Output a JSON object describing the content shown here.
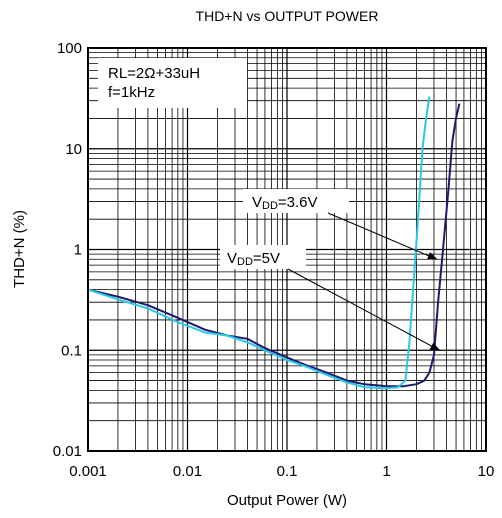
{
  "chart_data": {
    "type": "line",
    "title": "THD+N vs OUTPUT POWER",
    "xlabel": "Output Power (W)",
    "ylabel": "THD+N (%)",
    "x_scale": "log",
    "y_scale": "log",
    "xlim": [
      0.001,
      10
    ],
    "ylim": [
      0.01,
      100
    ],
    "x_ticks": [
      0.001,
      0.01,
      0.1,
      1,
      10
    ],
    "x_tick_labels": [
      "0.001",
      "0.01",
      "0.1",
      "1",
      "10"
    ],
    "y_ticks": [
      0.01,
      0.1,
      1,
      10,
      100
    ],
    "y_tick_labels": [
      "0.01",
      "0.1",
      "1",
      "10",
      "100"
    ],
    "grid": true,
    "conditions": {
      "line1": "RL=2Ω+33uH",
      "line2": "f=1kHz"
    },
    "series": [
      {
        "name": "VDD=5V",
        "color": "#1a1a6e",
        "points": [
          [
            0.001,
            0.4
          ],
          [
            0.002,
            0.34
          ],
          [
            0.004,
            0.28
          ],
          [
            0.008,
            0.21
          ],
          [
            0.015,
            0.16
          ],
          [
            0.025,
            0.14
          ],
          [
            0.04,
            0.13
          ],
          [
            0.06,
            0.105
          ],
          [
            0.1,
            0.085
          ],
          [
            0.15,
            0.072
          ],
          [
            0.25,
            0.06
          ],
          [
            0.4,
            0.05
          ],
          [
            0.6,
            0.046
          ],
          [
            1.0,
            0.044
          ],
          [
            1.5,
            0.044
          ],
          [
            2.0,
            0.046
          ],
          [
            2.4,
            0.05
          ],
          [
            2.7,
            0.06
          ],
          [
            3.0,
            0.09
          ],
          [
            3.3,
            0.3
          ],
          [
            3.7,
            1.0
          ],
          [
            4.2,
            4.0
          ],
          [
            4.6,
            12
          ],
          [
            5.0,
            20
          ],
          [
            5.4,
            28
          ]
        ]
      },
      {
        "name": "VDD=3.6V",
        "color": "#29c8e6",
        "points": [
          [
            0.001,
            0.4
          ],
          [
            0.002,
            0.32
          ],
          [
            0.004,
            0.26
          ],
          [
            0.008,
            0.19
          ],
          [
            0.015,
            0.15
          ],
          [
            0.025,
            0.14
          ],
          [
            0.04,
            0.12
          ],
          [
            0.06,
            0.1
          ],
          [
            0.1,
            0.08
          ],
          [
            0.15,
            0.07
          ],
          [
            0.25,
            0.057
          ],
          [
            0.4,
            0.048
          ],
          [
            0.6,
            0.043
          ],
          [
            1.0,
            0.042
          ],
          [
            1.3,
            0.043
          ],
          [
            1.55,
            0.05
          ],
          [
            1.7,
            0.12
          ],
          [
            1.85,
            0.4
          ],
          [
            2.0,
            1.2
          ],
          [
            2.15,
            3.5
          ],
          [
            2.3,
            10
          ],
          [
            2.5,
            20
          ],
          [
            2.7,
            33
          ]
        ]
      }
    ],
    "annotations": [
      {
        "main": "V",
        "sub": "DD",
        "rest": "=3.6V",
        "target_x": 3.2,
        "target_y": 0.8
      },
      {
        "main": "V",
        "sub": "DD",
        "rest": "=5V",
        "target_x": 3.4,
        "target_y": 0.1
      }
    ]
  }
}
